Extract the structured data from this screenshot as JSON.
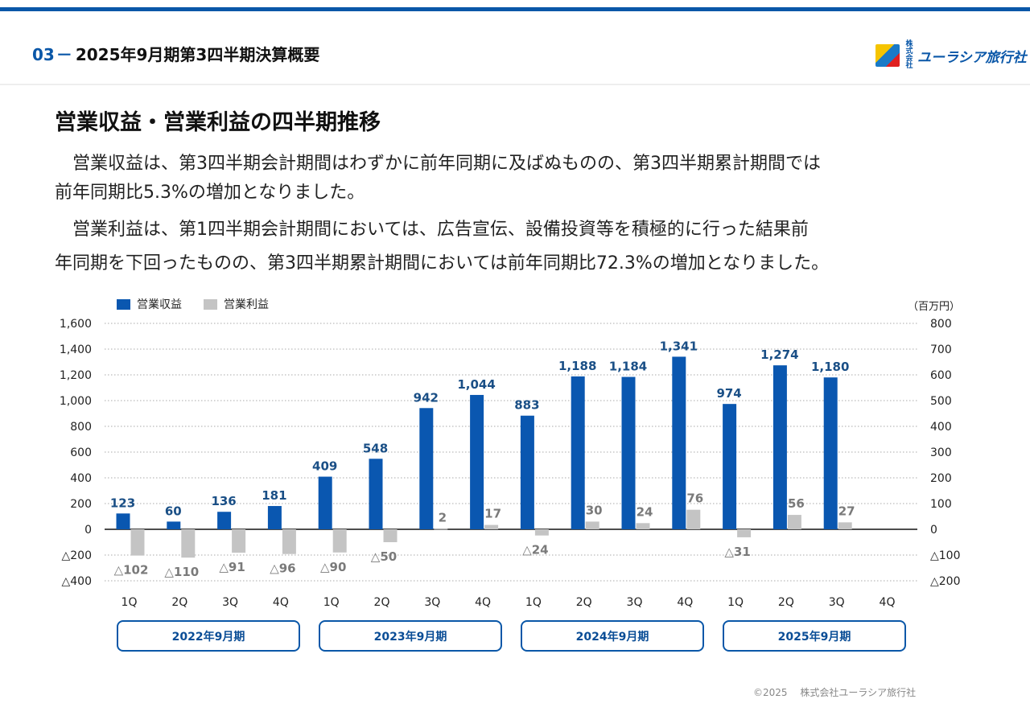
{
  "header": {
    "section_num": "03",
    "section_dash": "－",
    "section_title": "2025年9月期第3四半期決算概要",
    "logo_kabu": "株式会社",
    "logo_text": "ユーラシア旅行社",
    "logo_icon": "company-logo-icon"
  },
  "title": "営業収益・営業利益の四半期推移",
  "paragraphs": [
    "　営業収益は、第3四半期会計期間はわずかに前年同期に及ばぬものの、第3四半期累計期間では",
    "前年同期比5.3%の増加となりました。",
    "　営業利益は、第1四半期会計期間においては、広告宣伝、設備投資等を積極的に行った結果前",
    "年同期を下回ったものの、第3四半期累計期間においては前年同期比72.3%の増加となりました。"
  ],
  "chart_data": {
    "type": "bar",
    "unit": "（百万円）",
    "categories": [
      "1Q",
      "2Q",
      "3Q",
      "4Q",
      "1Q",
      "2Q",
      "3Q",
      "4Q",
      "1Q",
      "2Q",
      "3Q",
      "4Q",
      "1Q",
      "2Q",
      "3Q",
      "4Q"
    ],
    "period_groups": [
      "2022年9月期",
      "2023年9月期",
      "2024年9月期",
      "2025年9月期"
    ],
    "series": [
      {
        "name": "営業収益",
        "axis": "left",
        "color": "#0a57b0",
        "values": [
          123,
          60,
          136,
          181,
          409,
          548,
          942,
          1044,
          883,
          1188,
          1184,
          1341,
          974,
          1274,
          1180,
          null
        ],
        "labels": [
          "123",
          "60",
          "136",
          "181",
          "409",
          "548",
          "942",
          "1,044",
          "883",
          "1,188",
          "1,184",
          "1,341",
          "974",
          "1,274",
          "1,180",
          ""
        ]
      },
      {
        "name": "営業利益",
        "axis": "right",
        "color": "#c4c4c4",
        "values": [
          -102,
          -110,
          -91,
          -96,
          -90,
          -50,
          2,
          17,
          -24,
          30,
          24,
          76,
          -31,
          56,
          27,
          null
        ],
        "labels": [
          "△102",
          "△110",
          "△91",
          "△96",
          "△90",
          "△50",
          "2",
          "17",
          "△24",
          "30",
          "24",
          "76",
          "△31",
          "56",
          "27",
          ""
        ]
      }
    ],
    "left_axis": {
      "ylim": [
        -400,
        1600
      ],
      "ticks": [
        1600,
        1400,
        1200,
        1000,
        800,
        600,
        400,
        200,
        0,
        -200,
        -400
      ],
      "tick_labels": [
        "1,600",
        "1,400",
        "1,200",
        "1,000",
        "800",
        "600",
        "400",
        "200",
        "0",
        "△200",
        "△400"
      ]
    },
    "right_axis": {
      "ylim": [
        -200,
        800
      ],
      "ticks": [
        800,
        700,
        600,
        500,
        400,
        300,
        200,
        100,
        0,
        -100,
        -200
      ],
      "tick_labels": [
        "800",
        "700",
        "600",
        "500",
        "400",
        "300",
        "200",
        "100",
        "0",
        "△100",
        "△200"
      ]
    },
    "grid": true,
    "legend_position": "top-left"
  },
  "footer": "©2025　 株式会社ユーラシア旅行社"
}
